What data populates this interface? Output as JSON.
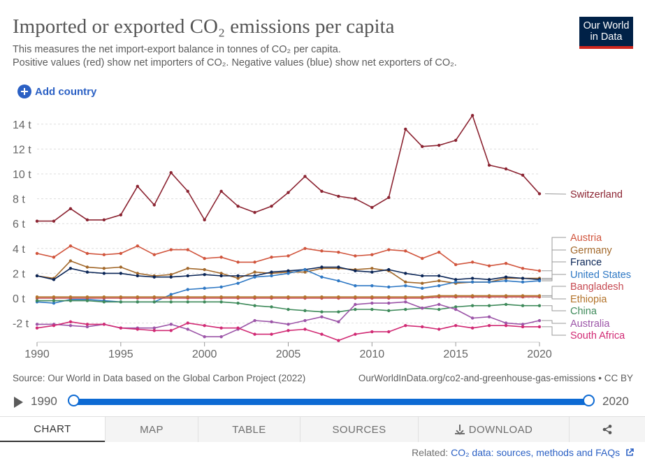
{
  "header": {
    "title": "Imported or exported CO₂ emissions per capita",
    "subtitle_line1": "This measures the net import-export balance in tonnes of CO₂ per capita.",
    "subtitle_line2": "Positive values (red) show net importers of CO₂. Negative values (blue) show net exporters of CO₂.",
    "logo_line1": "Our World",
    "logo_line2": "in Data"
  },
  "controls": {
    "add_country_label": "Add country",
    "add_icon": "plus-circle-icon"
  },
  "chart_data": {
    "type": "line",
    "title": "Imported or exported CO₂ emissions per capita",
    "xlabel": "",
    "ylabel": "",
    "xlim": [
      1990,
      2020
    ],
    "ylim": [
      -3.5,
      14.8
    ],
    "y_ticks": [
      -2,
      0,
      2,
      4,
      6,
      8,
      10,
      12,
      14
    ],
    "y_tick_labels": [
      "-2 t",
      "0 t",
      "2 t",
      "4 t",
      "6 t",
      "8 t",
      "10 t",
      "12 t",
      "14 t"
    ],
    "x_ticks": [
      1990,
      1995,
      2000,
      2005,
      2010,
      2015,
      2020
    ],
    "x_tick_labels": [
      "1990",
      "1995",
      "2000",
      "2005",
      "2010",
      "2015",
      "2020"
    ],
    "grid": "horizontal dashed",
    "legend": "right",
    "x": [
      1990,
      1991,
      1992,
      1993,
      1994,
      1995,
      1996,
      1997,
      1998,
      1999,
      2000,
      2001,
      2002,
      2003,
      2004,
      2005,
      2006,
      2007,
      2008,
      2009,
      2010,
      2011,
      2012,
      2013,
      2014,
      2015,
      2016,
      2017,
      2018,
      2019,
      2020
    ],
    "series": [
      {
        "name": "Switzerland",
        "color": "#8b2331",
        "values": [
          6.2,
          6.2,
          7.2,
          6.3,
          6.3,
          6.7,
          9.0,
          7.5,
          10.1,
          8.6,
          6.3,
          8.6,
          7.4,
          6.9,
          7.4,
          8.5,
          9.8,
          8.6,
          8.2,
          8.0,
          7.3,
          8.1,
          13.6,
          12.2,
          12.3,
          12.7,
          14.7,
          10.7,
          10.4,
          9.9,
          8.4
        ]
      },
      {
        "name": "Austria",
        "color": "#d1553d",
        "values": [
          3.6,
          3.3,
          4.2,
          3.6,
          3.5,
          3.6,
          4.2,
          3.5,
          3.9,
          3.9,
          3.2,
          3.3,
          2.9,
          2.9,
          3.3,
          3.4,
          4.0,
          3.8,
          3.7,
          3.4,
          3.5,
          3.9,
          3.8,
          3.2,
          3.7,
          2.7,
          2.9,
          2.6,
          2.8,
          2.4,
          2.2
        ]
      },
      {
        "name": "Germany",
        "color": "#a2682a",
        "values": [
          1.8,
          1.6,
          3.0,
          2.5,
          2.4,
          2.5,
          2.0,
          1.8,
          1.9,
          2.4,
          2.3,
          2.0,
          1.6,
          2.1,
          2.0,
          2.1,
          2.1,
          2.4,
          2.4,
          2.3,
          2.4,
          2.2,
          1.3,
          1.2,
          1.4,
          1.2,
          1.3,
          1.3,
          1.6,
          1.6,
          1.6
        ]
      },
      {
        "name": "France",
        "color": "#0a2556",
        "values": [
          1.8,
          1.5,
          2.4,
          2.1,
          2.0,
          2.0,
          1.8,
          1.7,
          1.7,
          1.8,
          1.9,
          1.8,
          1.8,
          1.8,
          2.1,
          2.2,
          2.3,
          2.5,
          2.5,
          2.2,
          2.1,
          2.3,
          2.0,
          1.8,
          1.8,
          1.5,
          1.6,
          1.5,
          1.7,
          1.6,
          1.5
        ]
      },
      {
        "name": "United States",
        "color": "#2e78c4",
        "values": [
          -0.3,
          -0.4,
          -0.1,
          -0.1,
          -0.2,
          -0.3,
          -0.3,
          -0.3,
          0.3,
          0.7,
          0.8,
          0.9,
          1.2,
          1.7,
          1.8,
          2.0,
          2.3,
          1.7,
          1.4,
          1.0,
          1.0,
          0.9,
          1.0,
          0.8,
          1.0,
          1.3,
          1.3,
          1.3,
          1.4,
          1.3,
          1.4
        ]
      },
      {
        "name": "Bangladesh",
        "color": "#c64a52",
        "values": [
          0.0,
          0.0,
          0.0,
          0.0,
          0.0,
          0.0,
          0.0,
          0.0,
          0.0,
          0.0,
          0.0,
          0.0,
          0.0,
          0.0,
          0.0,
          0.0,
          0.0,
          0.0,
          0.0,
          0.0,
          0.0,
          0.0,
          0.0,
          0.0,
          0.1,
          0.1,
          0.1,
          0.1,
          0.1,
          0.1,
          0.1
        ]
      },
      {
        "name": "Ethiopia",
        "color": "#b3742b",
        "values": [
          0.1,
          0.1,
          0.1,
          0.1,
          0.1,
          0.1,
          0.1,
          0.1,
          0.1,
          0.1,
          0.1,
          0.1,
          0.1,
          0.1,
          0.1,
          0.1,
          0.1,
          0.1,
          0.1,
          0.1,
          0.1,
          0.1,
          0.1,
          0.1,
          0.2,
          0.2,
          0.2,
          0.2,
          0.2,
          0.2,
          0.2
        ]
      },
      {
        "name": "China",
        "color": "#3e8a5a",
        "values": [
          -0.2,
          -0.2,
          -0.2,
          -0.2,
          -0.3,
          -0.3,
          -0.3,
          -0.3,
          -0.3,
          -0.3,
          -0.3,
          -0.3,
          -0.4,
          -0.6,
          -0.7,
          -0.9,
          -1.0,
          -1.1,
          -1.1,
          -0.9,
          -0.9,
          -1.0,
          -0.9,
          -0.8,
          -0.9,
          -0.7,
          -0.6,
          -0.6,
          -0.5,
          -0.6,
          -0.6
        ]
      },
      {
        "name": "Australia",
        "color": "#9c55a8",
        "values": [
          -2.1,
          -2.1,
          -2.2,
          -2.3,
          -2.1,
          -2.4,
          -2.4,
          -2.4,
          -2.1,
          -2.5,
          -3.1,
          -3.1,
          -2.5,
          -1.8,
          -1.9,
          -2.1,
          -1.8,
          -1.5,
          -1.9,
          -0.5,
          -0.4,
          -0.4,
          -0.3,
          -0.8,
          -0.5,
          -0.9,
          -1.6,
          -1.5,
          -2.0,
          -2.1,
          -1.8
        ]
      },
      {
        "name": "South Africa",
        "color": "#d12a74",
        "values": [
          -2.4,
          -2.2,
          -1.9,
          -2.1,
          -2.1,
          -2.4,
          -2.5,
          -2.6,
          -2.6,
          -2.0,
          -2.2,
          -2.4,
          -2.4,
          -2.9,
          -2.9,
          -2.6,
          -2.5,
          -2.9,
          -3.4,
          -2.9,
          -2.7,
          -2.7,
          -2.2,
          -2.3,
          -2.5,
          -2.2,
          -2.4,
          -2.2,
          -2.2,
          -2.3,
          -2.3
        ]
      }
    ]
  },
  "footer": {
    "source": "Source: Our World in Data based on the Global Carbon Project (2022)",
    "url_license": "OurWorldInData.org/co2-and-greenhouse-gas-emissions • CC BY"
  },
  "timeline": {
    "start_year": "1990",
    "end_year": "2020",
    "play_icon": "play-icon"
  },
  "tabs": [
    "CHART",
    "MAP",
    "TABLE",
    "SOURCES",
    "DOWNLOAD"
  ],
  "tab_icons": {
    "download": "download-icon",
    "share": "share-icon"
  },
  "related": {
    "prefix": "Related:",
    "link_text": "CO₂ data: sources, methods and FAQs",
    "icon": "external-link-icon"
  }
}
